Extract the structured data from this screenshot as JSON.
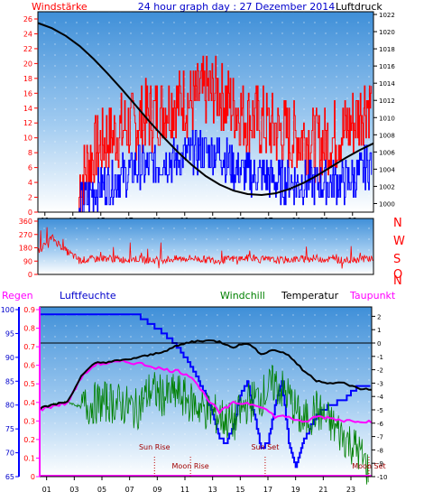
{
  "header": {
    "left_label": "Windstärke",
    "title": "24 hour graph day : 27 Dezember 2014",
    "right_label": "Luftdruck"
  },
  "compass": [
    "N",
    "W",
    "S",
    "O",
    "N"
  ],
  "bottom_labels": {
    "regen": "Regen",
    "luftfeuchte": "Luftfeuchte",
    "windchill": "Windchill",
    "temperatur": "Temperatur",
    "taupunkt": "Taupunkt"
  },
  "events": {
    "sun_rise": "Sun Rise",
    "moon_rise": "Moon Rise",
    "sun_set": "Sun Set",
    "moon_set": "Moon Set"
  },
  "colors": {
    "wind_gust": "#ff0000",
    "wind_avg": "#0000ff",
    "pressure": "#000000",
    "direction": "#ff0000",
    "humidity": "#0000ff",
    "temperature": "#000000",
    "windchill": "#008000",
    "dewpoint": "#ff00ff",
    "rain": "#ff00ff"
  },
  "chart_data": [
    {
      "type": "line",
      "x_ticks": [
        "01",
        "03",
        "05",
        "07",
        "09",
        "11",
        "13",
        "15",
        "17",
        "19",
        "21",
        "23"
      ],
      "y_left_ticks": [
        "0",
        "2",
        "4",
        "6",
        "8",
        "10",
        "12",
        "14",
        "16",
        "18",
        "20",
        "22",
        "24",
        "26"
      ],
      "y_left_range": [
        0,
        26
      ],
      "y_right_ticks": [
        "1000",
        "1002",
        "1004",
        "1006",
        "1008",
        "1010",
        "1012",
        "1014",
        "1016",
        "1018",
        "1020",
        "1022"
      ],
      "y_right_range": [
        999,
        1022
      ],
      "series": [
        {
          "key": "gust",
          "axis": "left",
          "x": [
            0,
            2.9,
            3,
            3.5,
            4,
            5,
            6,
            7,
            8,
            9,
            10,
            11,
            12,
            13,
            14,
            15,
            16,
            17,
            18,
            19,
            20,
            21,
            22,
            23,
            23.5,
            23.9
          ],
          "y": [
            0,
            0,
            4,
            6,
            8,
            10,
            11,
            12,
            13,
            14,
            15,
            15,
            16,
            16,
            14,
            13,
            12,
            11,
            10,
            10,
            9,
            10,
            11,
            13,
            15,
            14
          ]
        },
        {
          "key": "avg",
          "axis": "left",
          "x": [
            0,
            2.9,
            3,
            3.5,
            4,
            5,
            6,
            7,
            8,
            9,
            10,
            11,
            12,
            13,
            14,
            15,
            16,
            17,
            18,
            19,
            20,
            21,
            22,
            23,
            23.5,
            23.9
          ],
          "y": [
            0,
            0,
            1,
            2,
            3,
            4,
            5,
            6,
            6,
            7,
            7,
            8,
            8,
            8,
            6,
            5,
            5,
            4,
            4,
            4,
            4,
            4,
            4,
            5,
            6,
            7
          ]
        },
        {
          "key": "pressure",
          "axis": "right",
          "x": [
            0,
            1,
            2,
            3,
            4,
            5,
            6,
            7,
            8,
            9,
            10,
            11,
            12,
            13,
            14,
            15,
            16,
            17,
            18,
            19,
            20,
            21,
            22,
            23,
            24
          ],
          "y": [
            1021,
            1020.4,
            1019.5,
            1018.3,
            1016.8,
            1015.1,
            1013.3,
            1011.4,
            1009.5,
            1007.7,
            1006,
            1004.5,
            1003.2,
            1002.2,
            1001.5,
            1001.1,
            1001,
            1001.2,
            1001.7,
            1002.4,
            1003.3,
            1004.3,
            1005.3,
            1006.2,
            1007
          ]
        }
      ]
    },
    {
      "type": "scatter",
      "y_ticks": [
        "360",
        "270",
        "180",
        "90",
        "0"
      ],
      "y_range": [
        0,
        360
      ],
      "series": [
        {
          "key": "direction",
          "x": [
            0,
            1,
            2,
            3,
            4,
            5,
            6,
            7,
            8,
            9,
            10,
            11,
            12,
            13,
            14,
            15,
            16,
            17,
            18,
            19,
            20,
            21,
            22,
            23,
            24
          ],
          "y": [
            150,
            250,
            160,
            95,
            105,
            110,
            100,
            105,
            95,
            100,
            105,
            110,
            100,
            95,
            105,
            110,
            100,
            95,
            100,
            105,
            110,
            100,
            95,
            105,
            110
          ]
        }
      ]
    },
    {
      "type": "line",
      "x_ticks": [
        "01",
        "03",
        "05",
        "07",
        "09",
        "11",
        "13",
        "15",
        "17",
        "19",
        "21",
        "23"
      ],
      "humidity_ticks": [
        "65",
        "70",
        "75",
        "80",
        "85",
        "90",
        "95",
        "100"
      ],
      "humidity_range": [
        65,
        100
      ],
      "rain_ticks": [
        "0",
        "0.1",
        "0.2",
        "0.3",
        "0.4",
        "0.5",
        "0.6",
        "0.7",
        "0.8",
        "0.9"
      ],
      "rain_range": [
        0,
        0.9
      ],
      "temp_ticks": [
        "2",
        "1",
        "0",
        "-1",
        "-2",
        "-3",
        "-4",
        "-5",
        "-6",
        "-7",
        "-8",
        "-9",
        "-10"
      ],
      "temp_range": [
        -10,
        2.5
      ],
      "series": [
        {
          "key": "humidity",
          "axis": "humidity",
          "x": [
            0,
            1,
            2,
            3,
            4,
            5,
            6,
            7,
            8,
            9,
            10,
            11,
            12,
            12.5,
            13,
            13.5,
            14,
            14.5,
            15,
            15.5,
            16,
            16.5,
            17,
            17.5,
            18,
            18.5,
            19,
            20,
            21,
            22,
            23,
            24
          ],
          "y": [
            99,
            99,
            99,
            99,
            99,
            99,
            99,
            99,
            97,
            95,
            92,
            88,
            82,
            78,
            73,
            72,
            76,
            82,
            85,
            78,
            71,
            72,
            80,
            85,
            72,
            67,
            72,
            78,
            80,
            81,
            84,
            84
          ]
        },
        {
          "key": "temperature",
          "axis": "temp",
          "x": [
            0,
            1,
            2,
            3,
            4,
            5,
            6,
            7,
            8,
            9,
            10,
            11,
            12,
            13,
            14,
            15,
            16,
            17,
            18,
            19,
            20,
            21,
            22,
            23,
            24
          ],
          "y": [
            -4.9,
            -4.6,
            -4.4,
            -2.5,
            -1.5,
            -1.4,
            -1.3,
            -1.1,
            -0.9,
            -0.6,
            -0.2,
            0.1,
            0.2,
            0.1,
            -0.3,
            0,
            -0.8,
            -0.5,
            -0.9,
            -2,
            -2.8,
            -3,
            -3,
            -3.4,
            -3.5
          ]
        },
        {
          "key": "windchill",
          "axis": "temp",
          "x": [
            0,
            1,
            2,
            3,
            4,
            5,
            6,
            7,
            8,
            9,
            10,
            11,
            12,
            13,
            14,
            15,
            16,
            17,
            18,
            19,
            20,
            21,
            22,
            23,
            23.8
          ],
          "y": [
            -4.9,
            -4.6,
            -4.4,
            -4.8,
            -4.5,
            -4.4,
            -4.6,
            -5,
            -3.5,
            -4,
            -3.8,
            -4.5,
            -5,
            -5.5,
            -6,
            -4.5,
            -4,
            -3,
            -4,
            -6,
            -5,
            -6,
            -7,
            -8,
            -9.5
          ]
        },
        {
          "key": "dewpoint",
          "axis": "temp",
          "x": [
            0,
            1,
            2,
            3,
            4,
            5,
            6,
            7,
            8,
            9,
            10,
            11,
            12,
            13,
            14,
            15,
            16,
            17,
            18,
            19,
            20,
            21,
            22,
            23,
            24
          ],
          "y": [
            -5,
            -4.7,
            -4.5,
            -2.6,
            -1.6,
            -1.5,
            -1.4,
            -1.5,
            -1.7,
            -2,
            -2.1,
            -2.5,
            -4,
            -5.2,
            -4.5,
            -4.5,
            -4.7,
            -5.5,
            -5.5,
            -6,
            -5.5,
            -5.6,
            -5.8,
            -5.8,
            -5.9
          ]
        },
        {
          "key": "rain",
          "axis": "rain",
          "x": [
            0,
            24
          ],
          "y": [
            0,
            0
          ]
        }
      ],
      "events_x": {
        "sun_rise": 8.3,
        "moon_rise": 10.9,
        "sun_set": 16.3,
        "moon_set": 23.8
      }
    }
  ]
}
